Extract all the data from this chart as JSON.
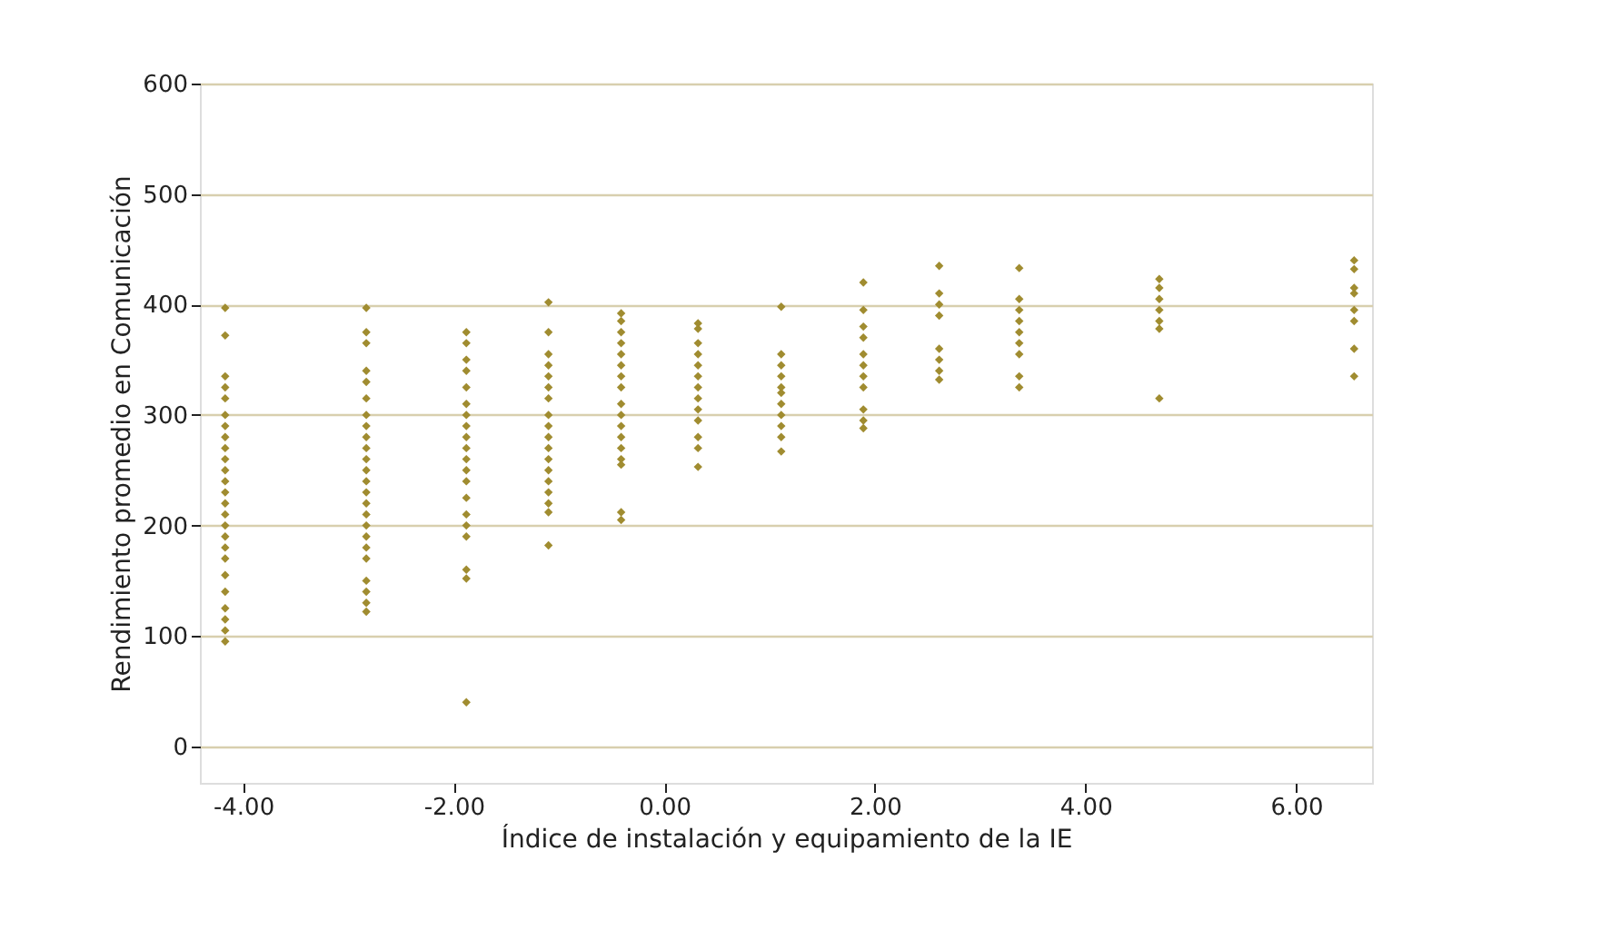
{
  "chart_data": {
    "type": "scatter",
    "xlabel": "Índice de instalación y equipamiento de la IE",
    "ylabel": "Rendimiento promedio en Comunicación",
    "xlim": [
      -4.41,
      6.72
    ],
    "ylim": [
      -33,
      600
    ],
    "xticks": [
      {
        "value": -4,
        "label": "-4.00"
      },
      {
        "value": -2,
        "label": "-2.00"
      },
      {
        "value": 0,
        "label": "0.00"
      },
      {
        "value": 2,
        "label": "2.00"
      },
      {
        "value": 4,
        "label": "4.00"
      },
      {
        "value": 6,
        "label": "6.00"
      }
    ],
    "yticks": [
      0,
      100,
      200,
      300,
      400,
      500,
      600
    ],
    "grid": "y",
    "legend": false,
    "marker": "diamond",
    "series": [
      {
        "color": "#a08c30",
        "x": [
          -4.17,
          -4.17,
          -4.17,
          -4.17,
          -4.17,
          -4.17,
          -4.17,
          -4.17,
          -4.17,
          -4.17,
          -4.17,
          -4.17,
          -4.17,
          -4.17,
          -4.17,
          -4.17,
          -4.17,
          -4.17,
          -4.17,
          -4.17,
          -4.17,
          -4.17,
          -4.17,
          -4.17,
          -4.17
        ],
        "values": [
          397,
          372,
          335,
          325,
          315,
          300,
          290,
          280,
          270,
          260,
          250,
          240,
          230,
          220,
          210,
          200,
          190,
          180,
          170,
          155,
          140,
          125,
          115,
          105,
          95
        ]
      },
      {
        "color": "#a08c30",
        "x": [
          -2.83,
          -2.83,
          -2.83,
          -2.83,
          -2.83,
          -2.83,
          -2.83,
          -2.83,
          -2.83,
          -2.83,
          -2.83,
          -2.83,
          -2.83,
          -2.83,
          -2.83,
          -2.83,
          -2.83,
          -2.83,
          -2.83,
          -2.83,
          -2.83,
          -2.83,
          -2.83,
          -2.83
        ],
        "values": [
          397,
          375,
          365,
          340,
          330,
          315,
          300,
          290,
          280,
          270,
          260,
          250,
          240,
          230,
          220,
          210,
          200,
          190,
          180,
          170,
          150,
          140,
          130,
          122
        ]
      },
      {
        "color": "#a08c30",
        "x": [
          -1.88,
          -1.88,
          -1.88,
          -1.88,
          -1.88,
          -1.88,
          -1.88,
          -1.88,
          -1.88,
          -1.88,
          -1.88,
          -1.88,
          -1.88,
          -1.88,
          -1.88,
          -1.88,
          -1.88,
          -1.88,
          -1.88,
          -1.88
        ],
        "values": [
          375,
          365,
          350,
          340,
          325,
          310,
          300,
          290,
          280,
          270,
          260,
          250,
          240,
          225,
          210,
          200,
          190,
          160,
          152,
          40
        ]
      },
      {
        "color": "#a08c30",
        "x": [
          -1.1,
          -1.1,
          -1.1,
          -1.1,
          -1.1,
          -1.1,
          -1.1,
          -1.1,
          -1.1,
          -1.1,
          -1.1,
          -1.1,
          -1.1,
          -1.1,
          -1.1,
          -1.1,
          -1.1,
          -1.1
        ],
        "values": [
          402,
          375,
          355,
          345,
          335,
          325,
          315,
          300,
          290,
          280,
          270,
          260,
          250,
          240,
          230,
          220,
          212,
          182
        ]
      },
      {
        "color": "#a08c30",
        "x": [
          -0.41,
          -0.41,
          -0.41,
          -0.41,
          -0.41,
          -0.41,
          -0.41,
          -0.41,
          -0.41,
          -0.41,
          -0.41,
          -0.41,
          -0.41,
          -0.41,
          -0.41,
          -0.41,
          -0.41
        ],
        "values": [
          392,
          385,
          375,
          365,
          355,
          345,
          335,
          325,
          310,
          300,
          290,
          280,
          270,
          260,
          255,
          212,
          205
        ]
      },
      {
        "color": "#a08c30",
        "x": [
          0.32,
          0.32,
          0.32,
          0.32,
          0.32,
          0.32,
          0.32,
          0.32,
          0.32,
          0.32,
          0.32,
          0.32,
          0.32
        ],
        "values": [
          383,
          378,
          365,
          355,
          345,
          335,
          325,
          315,
          305,
          295,
          280,
          270,
          253
        ]
      },
      {
        "color": "#a08c30",
        "x": [
          1.11,
          1.11,
          1.11,
          1.11,
          1.11,
          1.11,
          1.11,
          1.11,
          1.11,
          1.11,
          1.11
        ],
        "values": [
          398,
          355,
          345,
          335,
          325,
          320,
          310,
          300,
          290,
          280,
          267
        ]
      },
      {
        "color": "#a08c30",
        "x": [
          1.89,
          1.89,
          1.89,
          1.89,
          1.89,
          1.89,
          1.89,
          1.89,
          1.89,
          1.89,
          1.89
        ],
        "values": [
          420,
          395,
          380,
          370,
          355,
          345,
          335,
          325,
          305,
          295,
          288
        ]
      },
      {
        "color": "#a08c30",
        "x": [
          2.61,
          2.61,
          2.61,
          2.61,
          2.61,
          2.61,
          2.61,
          2.61
        ],
        "values": [
          435,
          410,
          400,
          390,
          360,
          350,
          340,
          332
        ]
      },
      {
        "color": "#a08c30",
        "x": [
          3.37,
          3.37,
          3.37,
          3.37,
          3.37,
          3.37,
          3.37,
          3.37,
          3.37
        ],
        "values": [
          433,
          405,
          395,
          385,
          375,
          365,
          355,
          335,
          325
        ]
      },
      {
        "color": "#a08c30",
        "x": [
          4.7,
          4.7,
          4.7,
          4.7,
          4.7,
          4.7,
          4.7
        ],
        "values": [
          423,
          415,
          405,
          395,
          385,
          378,
          315
        ]
      },
      {
        "color": "#a08c30",
        "x": [
          6.55,
          6.55,
          6.55,
          6.55,
          6.55,
          6.55,
          6.55,
          6.55
        ],
        "values": [
          440,
          432,
          415,
          410,
          395,
          385,
          360,
          335
        ]
      }
    ]
  }
}
